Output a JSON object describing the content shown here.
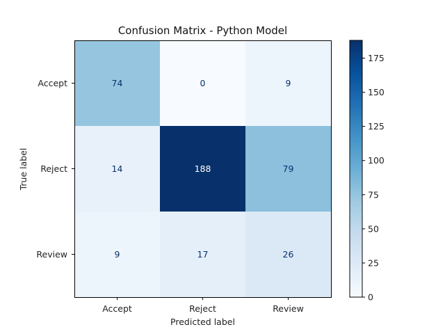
{
  "chart_data": {
    "type": "heatmap",
    "title": "Confusion Matrix - Python Model",
    "xlabel": "Predicted label",
    "ylabel": "True label",
    "x_categories": [
      "Accept",
      "Reject",
      "Review"
    ],
    "y_categories": [
      "Accept",
      "Reject",
      "Review"
    ],
    "values": [
      [
        74,
        0,
        9
      ],
      [
        14,
        188,
        79
      ],
      [
        9,
        17,
        26
      ]
    ],
    "colormap": "Blues",
    "colorbar": {
      "range": [
        0,
        188
      ],
      "ticks": [
        0,
        25,
        50,
        75,
        100,
        125,
        150,
        175
      ]
    },
    "grid": false,
    "legend": "colorbar-right"
  }
}
